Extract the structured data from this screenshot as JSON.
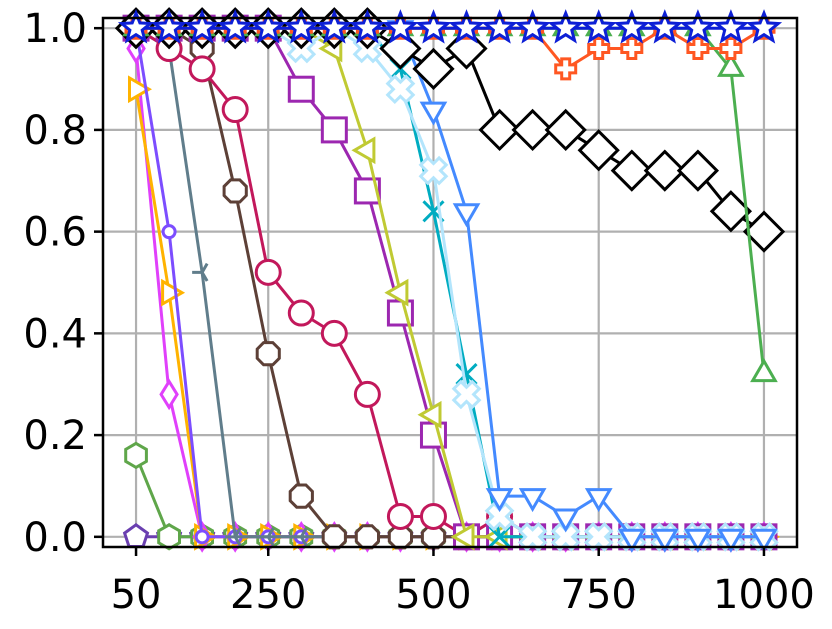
{
  "chart_data": {
    "type": "line",
    "title": "",
    "xlabel": "",
    "ylabel": "",
    "xlim": [
      0,
      1050
    ],
    "ylim": [
      -0.02,
      1.02
    ],
    "x_ticks": [
      50,
      250,
      500,
      750,
      1000
    ],
    "x_tick_labels": [
      "50",
      "250",
      "500",
      "750",
      "1000"
    ],
    "y_ticks": [
      0.0,
      0.2,
      0.4,
      0.6,
      0.8,
      1.0
    ],
    "y_tick_labels": [
      "0.0",
      "0.2",
      "0.4",
      "0.6",
      "0.8",
      "1.0"
    ],
    "grid": true,
    "legend": "none",
    "x": [
      50,
      100,
      150,
      200,
      250,
      300,
      350,
      400,
      450,
      500,
      550,
      600,
      650,
      700,
      750,
      800,
      850,
      900,
      950,
      1000
    ],
    "series": [
      {
        "color": "#6a3fb0",
        "marker": "pentagon",
        "values": [
          0,
          0,
          0,
          0,
          0,
          0,
          0,
          0,
          0,
          0,
          0,
          0,
          0,
          0,
          0,
          0,
          0,
          0,
          0,
          0
        ]
      },
      {
        "color": "#5fa64a",
        "marker": "hexagon",
        "values": [
          0.16,
          0,
          0,
          0,
          0,
          0,
          0,
          0,
          0,
          0,
          0,
          0,
          0,
          0,
          0,
          0,
          0,
          0,
          0,
          0
        ]
      },
      {
        "color": "#e040fb",
        "marker": "diamond_thin",
        "values": [
          0.96,
          0.28,
          0,
          0,
          0,
          0,
          0,
          0,
          0,
          0,
          0,
          0,
          0,
          0,
          0,
          0,
          0,
          0,
          0,
          0
        ]
      },
      {
        "color": "#ffb300",
        "marker": "triangle_right",
        "values": [
          0.88,
          0.48,
          0,
          0,
          0,
          0,
          0,
          0,
          0,
          0,
          0,
          0,
          0,
          0,
          0,
          0,
          0,
          0,
          0,
          0
        ]
      },
      {
        "color": "#7c4dff",
        "marker": "circle_small",
        "values": [
          1.0,
          0.6,
          0,
          0,
          0,
          0,
          0,
          0,
          0,
          0,
          0,
          0,
          0,
          0,
          0,
          0,
          0,
          0,
          0,
          0
        ]
      },
      {
        "color": "#607d8b",
        "marker": "tri_left",
        "values": [
          1.0,
          0.96,
          0.52,
          0,
          0,
          0,
          0,
          0,
          0,
          0,
          0,
          0,
          0,
          0,
          0,
          0,
          0,
          0,
          0,
          0
        ]
      },
      {
        "color": "#5d4037",
        "marker": "octagon",
        "values": [
          1.0,
          1.0,
          0.96,
          0.68,
          0.36,
          0.08,
          0,
          0,
          0,
          0,
          0,
          0,
          0,
          0,
          0,
          0,
          0,
          0,
          0,
          0
        ]
      },
      {
        "color": "#c2185b",
        "marker": "circle",
        "values": [
          1.0,
          0.96,
          0.92,
          0.84,
          0.52,
          0.44,
          0.4,
          0.28,
          0.04,
          0.04,
          0,
          0.04,
          0,
          0,
          0,
          0,
          0,
          0,
          0,
          0
        ]
      },
      {
        "color": "#9c27b0",
        "marker": "square",
        "values": [
          1.0,
          1.0,
          1.0,
          1.0,
          1.0,
          0.88,
          0.8,
          0.68,
          0.44,
          0.2,
          0,
          0,
          0,
          0,
          0,
          0,
          0,
          0,
          0,
          0
        ]
      },
      {
        "color": "#c0ca33",
        "marker": "triangle_left",
        "values": [
          1.0,
          1.0,
          1.0,
          1.0,
          1.0,
          1.0,
          0.96,
          0.76,
          0.48,
          0.24,
          0,
          0,
          0,
          0,
          0,
          0,
          0,
          0,
          0,
          0
        ]
      },
      {
        "color": "#00acc1",
        "marker": "x",
        "values": [
          1.0,
          1.0,
          1.0,
          1.0,
          1.0,
          1.0,
          1.0,
          1.0,
          0.92,
          0.64,
          0.32,
          0,
          0,
          0,
          0,
          0,
          0,
          0,
          0,
          0
        ]
      },
      {
        "color": "#b3e5fc",
        "marker": "x_filled",
        "values": [
          1.0,
          1.0,
          1.0,
          1.0,
          1.0,
          0.96,
          1.0,
          0.96,
          0.88,
          0.72,
          0.28,
          0.04,
          0,
          0,
          0,
          0,
          0,
          0,
          0,
          0
        ]
      },
      {
        "color": "#448aff",
        "marker": "triangle_down",
        "values": [
          1.0,
          1.0,
          1.0,
          1.0,
          1.0,
          1.0,
          1.0,
          1.0,
          1.0,
          0.84,
          0.64,
          0.08,
          0.08,
          0.04,
          0.08,
          0,
          0,
          0,
          0,
          0
        ]
      },
      {
        "color": "#000000",
        "marker": "diamond",
        "values": [
          1.0,
          1.0,
          1.0,
          1.0,
          1.0,
          1.0,
          1.0,
          1.0,
          0.96,
          0.92,
          0.96,
          0.8,
          0.8,
          0.8,
          0.76,
          0.72,
          0.72,
          0.72,
          0.64,
          0.6
        ]
      },
      {
        "color": "#4caf50",
        "marker": "triangle_up",
        "values": [
          1.0,
          1.0,
          1.0,
          1.0,
          1.0,
          1.0,
          1.0,
          1.0,
          1.0,
          1.0,
          1.0,
          1.0,
          1.0,
          1.0,
          1.0,
          1.0,
          1.0,
          1.0,
          0.92,
          0.32
        ]
      },
      {
        "color": "#ff5722",
        "marker": "plus_filled",
        "values": [
          1.0,
          1.0,
          1.0,
          1.0,
          1.0,
          1.0,
          1.0,
          1.0,
          1.0,
          1.0,
          1.0,
          1.0,
          1.0,
          0.92,
          0.96,
          0.96,
          1.0,
          0.96,
          0.96,
          1.0
        ]
      },
      {
        "color": "#0d1fd6",
        "marker": "star",
        "values": [
          1.0,
          1.0,
          1.0,
          1.0,
          1.0,
          1.0,
          1.0,
          1.0,
          1.0,
          1.0,
          1.0,
          1.0,
          1.0,
          1.0,
          1.0,
          1.0,
          1.0,
          1.0,
          1.0,
          1.0
        ]
      }
    ]
  }
}
